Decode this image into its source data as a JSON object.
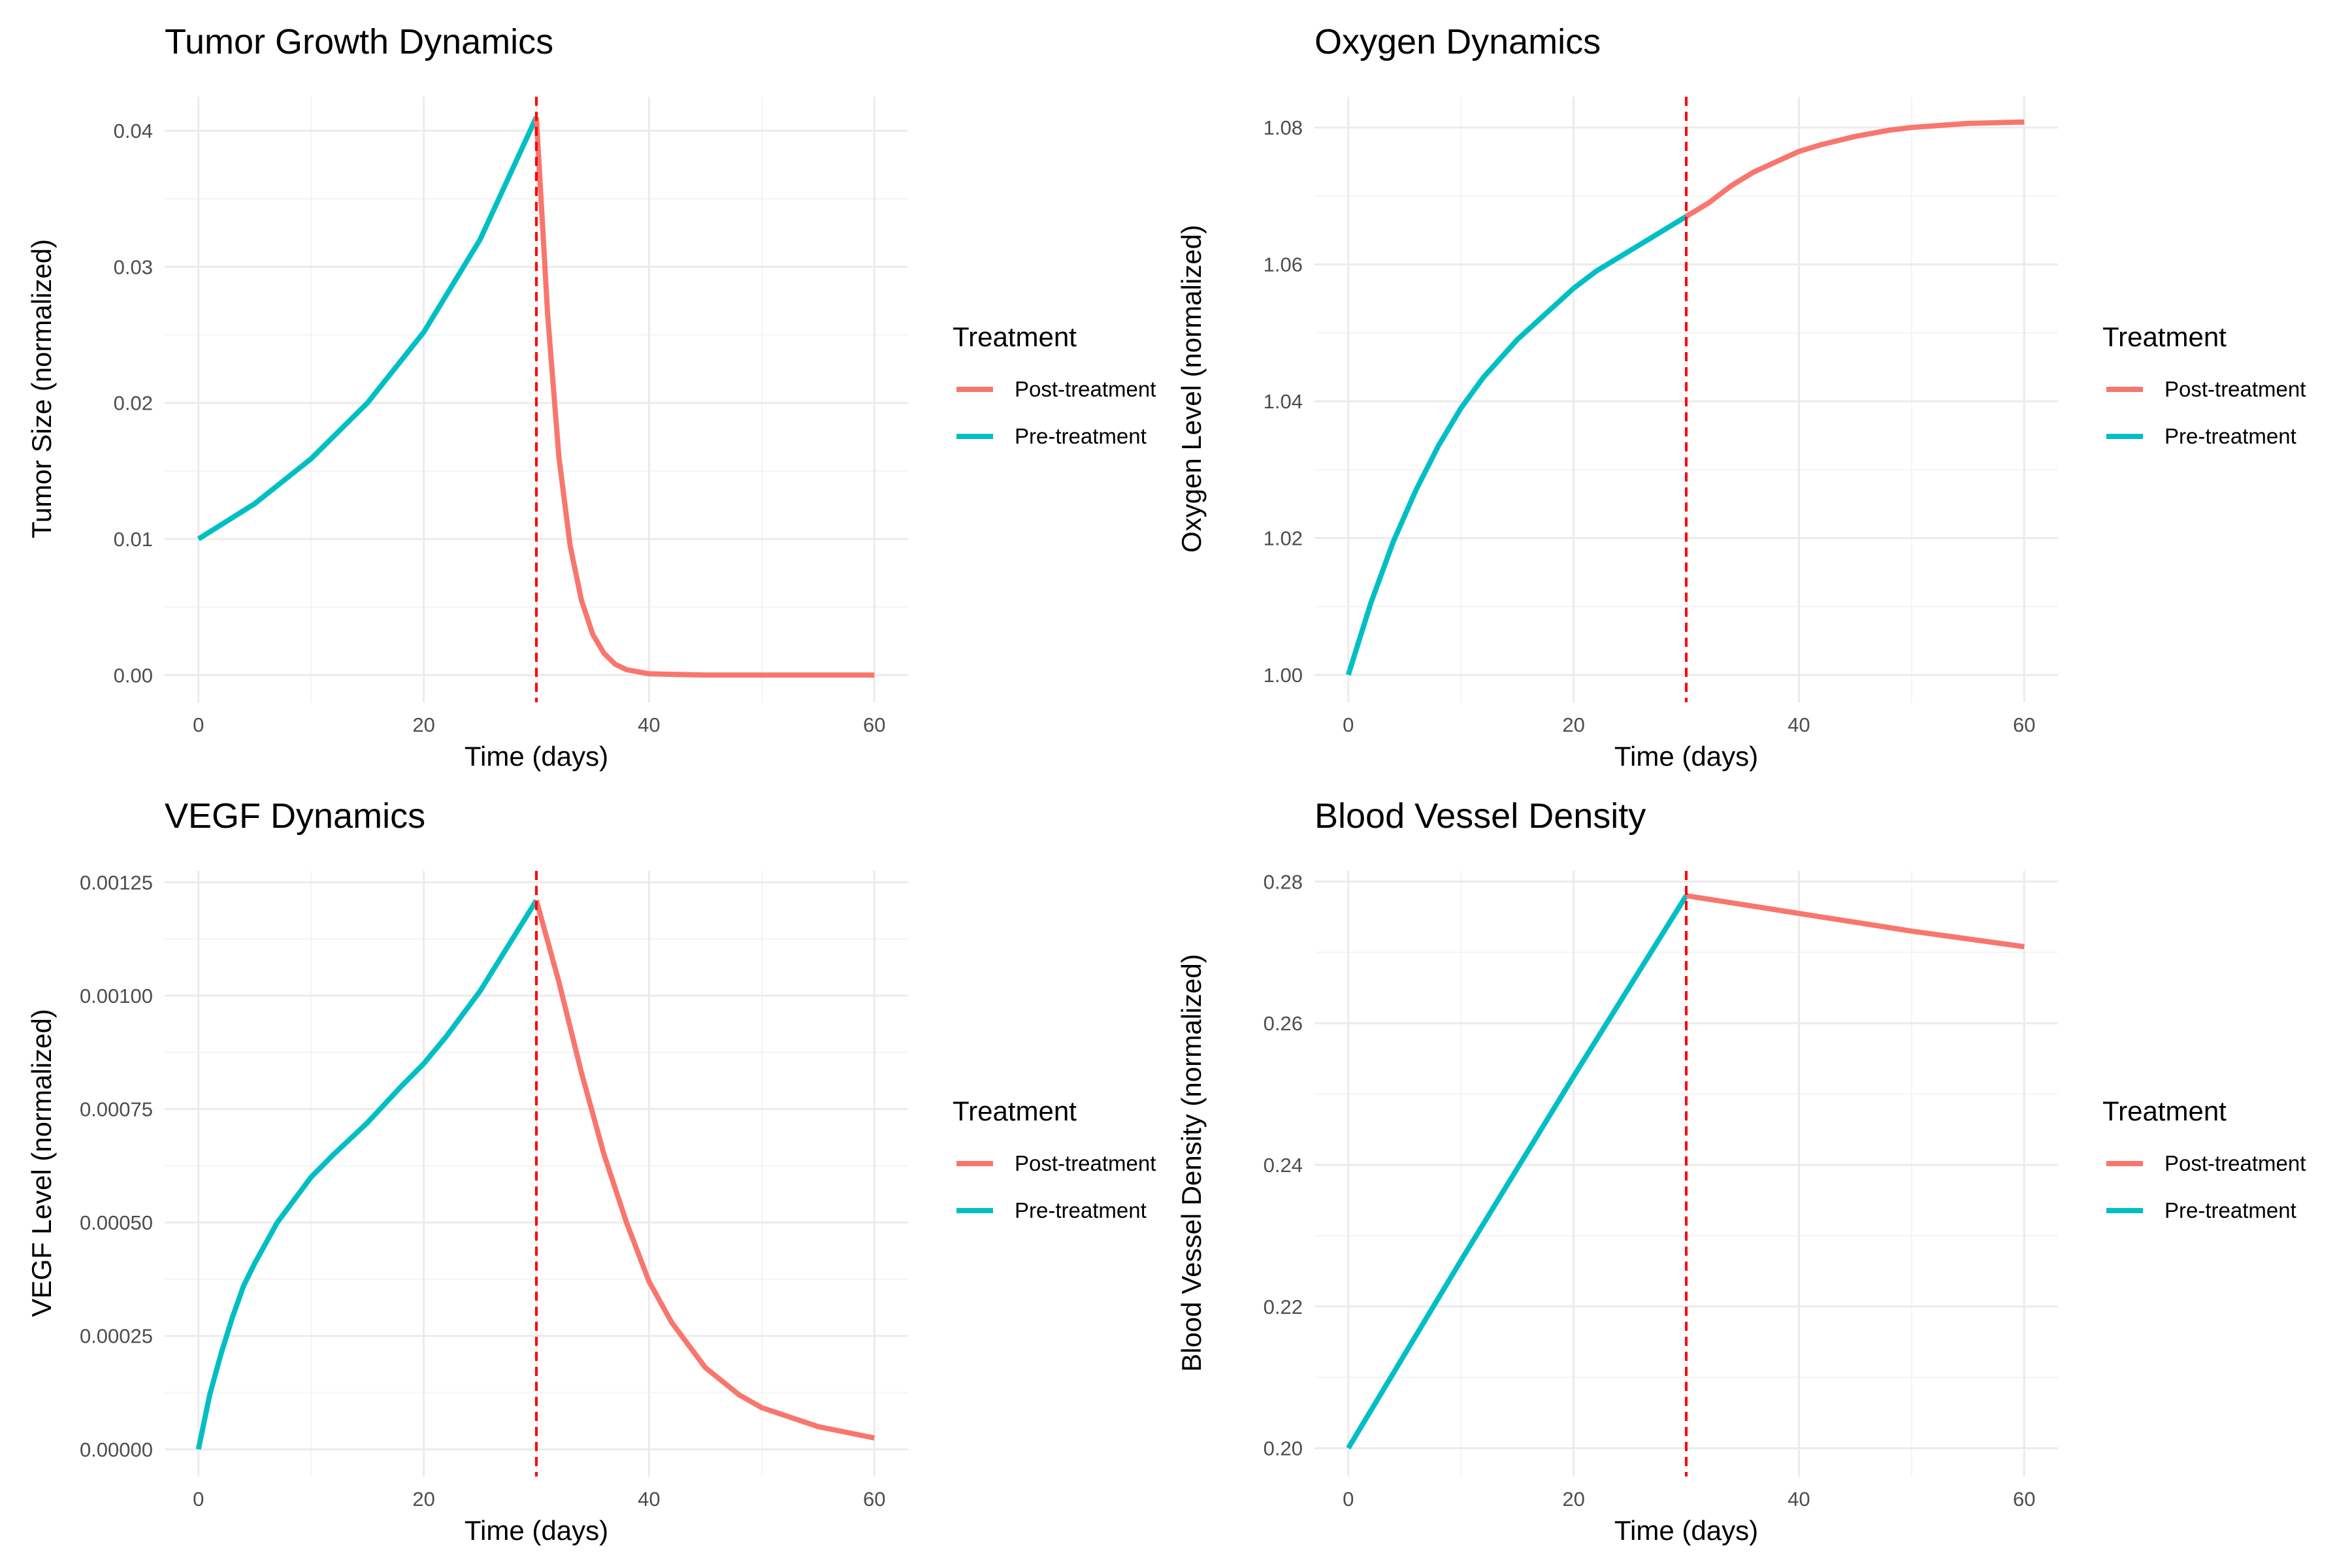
{
  "chart_data": [
    {
      "type": "line",
      "title": "Tumor Growth Dynamics",
      "xlabel": "Time (days)",
      "ylabel": "Tumor Size (normalized)",
      "xlim": [
        -3,
        63
      ],
      "ylim": [
        -0.002,
        0.0425
      ],
      "xticks": [
        0,
        20,
        40,
        60
      ],
      "xtick_labels": [
        "0",
        "20",
        "40",
        "60"
      ],
      "yticks": [
        0,
        0.01,
        0.02,
        0.03,
        0.04
      ],
      "ytick_labels": [
        "0.00",
        "0.01",
        "0.02",
        "0.03",
        "0.04"
      ],
      "grid": true,
      "vline": {
        "x": 30,
        "style": "dashed",
        "color": "#ff0000"
      },
      "legend": {
        "title": "Treatment",
        "placement": "right",
        "entries": [
          "Post-treatment",
          "Pre-treatment"
        ]
      },
      "series": [
        {
          "name": "Pre-treatment",
          "color": "#00BFC4",
          "x": [
            0,
            5,
            10,
            15,
            20,
            25,
            30
          ],
          "y": [
            0.01,
            0.0126,
            0.0159,
            0.02,
            0.0252,
            0.032,
            0.041
          ]
        },
        {
          "name": "Post-treatment",
          "color": "#F8766D",
          "x": [
            30,
            31,
            32,
            33,
            34,
            35,
            36,
            37,
            38,
            40,
            45,
            50,
            60
          ],
          "y": [
            0.041,
            0.0265,
            0.016,
            0.0095,
            0.0055,
            0.003,
            0.0016,
            0.0008,
            0.0004,
            0.0001,
            0.0,
            0.0,
            0.0
          ]
        }
      ]
    },
    {
      "type": "line",
      "title": "Oxygen Dynamics",
      "xlabel": "Time (days)",
      "ylabel": "Oxygen Level (normalized)",
      "xlim": [
        -3,
        63
      ],
      "ylim": [
        0.996,
        1.0845
      ],
      "xticks": [
        0,
        20,
        40,
        60
      ],
      "xtick_labels": [
        "0",
        "20",
        "40",
        "60"
      ],
      "yticks": [
        1.0,
        1.02,
        1.04,
        1.06,
        1.08
      ],
      "ytick_labels": [
        "1.00",
        "1.02",
        "1.04",
        "1.06",
        "1.08"
      ],
      "grid": true,
      "vline": {
        "x": 30,
        "style": "dashed",
        "color": "#ff0000"
      },
      "legend": {
        "title": "Treatment",
        "placement": "right",
        "entries": [
          "Post-treatment",
          "Pre-treatment"
        ]
      },
      "series": [
        {
          "name": "Pre-treatment",
          "color": "#00BFC4",
          "x": [
            0,
            2,
            4,
            6,
            8,
            10,
            12,
            15,
            18,
            20,
            22,
            25,
            28,
            30
          ],
          "y": [
            1.0,
            1.0105,
            1.0195,
            1.027,
            1.0335,
            1.039,
            1.0435,
            1.049,
            1.0535,
            1.0565,
            1.059,
            1.062,
            1.065,
            1.067
          ]
        },
        {
          "name": "Post-treatment",
          "color": "#F8766D",
          "x": [
            30,
            32,
            34,
            36,
            38,
            40,
            42,
            45,
            48,
            50,
            55,
            60
          ],
          "y": [
            1.067,
            1.069,
            1.0715,
            1.0735,
            1.075,
            1.0765,
            1.0775,
            1.0787,
            1.0796,
            1.08,
            1.0806,
            1.0808
          ]
        }
      ]
    },
    {
      "type": "line",
      "title": "VEGF Dynamics",
      "xlabel": "Time (days)",
      "ylabel": "VEGF Level (normalized)",
      "xlim": [
        -3,
        63
      ],
      "ylim": [
        -6e-05,
        0.001275
      ],
      "xticks": [
        0,
        20,
        40,
        60
      ],
      "xtick_labels": [
        "0",
        "20",
        "40",
        "60"
      ],
      "yticks": [
        0,
        0.00025,
        0.0005,
        0.00075,
        0.001,
        0.00125
      ],
      "ytick_labels": [
        "0.00000",
        "0.00025",
        "0.00050",
        "0.00075",
        "0.00100",
        "0.00125"
      ],
      "grid": true,
      "vline": {
        "x": 30,
        "style": "dashed",
        "color": "#ff0000"
      },
      "legend": {
        "title": "Treatment",
        "placement": "right",
        "entries": [
          "Post-treatment",
          "Pre-treatment"
        ]
      },
      "series": [
        {
          "name": "Pre-treatment",
          "color": "#00BFC4",
          "x": [
            0,
            1,
            2,
            3,
            4,
            5,
            7,
            10,
            12,
            15,
            18,
            20,
            22,
            25,
            28,
            30
          ],
          "y": [
            0.0,
            0.00012,
            0.00021,
            0.00029,
            0.00036,
            0.00041,
            0.0005,
            0.0006,
            0.00065,
            0.00072,
            0.0008,
            0.00085,
            0.00091,
            0.00101,
            0.00113,
            0.00121
          ]
        },
        {
          "name": "Post-treatment",
          "color": "#F8766D",
          "x": [
            30,
            32,
            34,
            36,
            38,
            40,
            42,
            45,
            48,
            50,
            55,
            60
          ],
          "y": [
            0.00121,
            0.00103,
            0.00083,
            0.00065,
            0.0005,
            0.00037,
            0.00028,
            0.00018,
            0.00012,
            9.2e-05,
            5e-05,
            2.5e-05
          ]
        }
      ]
    },
    {
      "type": "line",
      "title": "Blood Vessel Density",
      "xlabel": "Time (days)",
      "ylabel": "Blood Vessel Density (normalized)",
      "xlim": [
        -3,
        63
      ],
      "ylim": [
        0.196,
        0.2815
      ],
      "xticks": [
        0,
        20,
        40,
        60
      ],
      "xtick_labels": [
        "0",
        "20",
        "40",
        "60"
      ],
      "yticks": [
        0.2,
        0.22,
        0.24,
        0.26,
        0.28
      ],
      "ytick_labels": [
        "0.20",
        "0.22",
        "0.24",
        "0.26",
        "0.28"
      ],
      "grid": true,
      "vline": {
        "x": 30,
        "style": "dashed",
        "color": "#ff0000"
      },
      "legend": {
        "title": "Treatment",
        "placement": "right",
        "entries": [
          "Post-treatment",
          "Pre-treatment"
        ]
      },
      "series": [
        {
          "name": "Pre-treatment",
          "color": "#00BFC4",
          "x": [
            0,
            10,
            20,
            30
          ],
          "y": [
            0.2,
            0.2265,
            0.2525,
            0.278
          ]
        },
        {
          "name": "Post-treatment",
          "color": "#F8766D",
          "x": [
            30,
            40,
            50,
            60
          ],
          "y": [
            0.278,
            0.2755,
            0.273,
            0.2708
          ]
        }
      ]
    }
  ]
}
